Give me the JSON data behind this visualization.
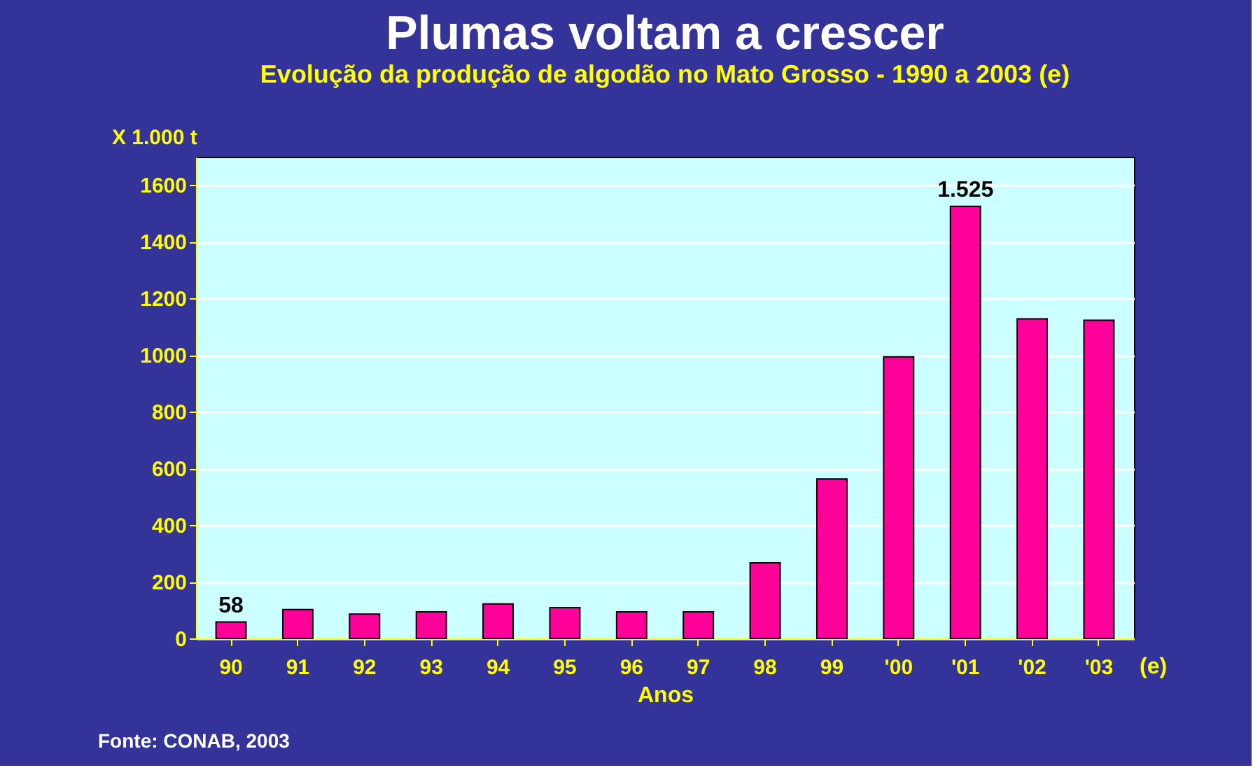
{
  "chart_data": {
    "type": "bar",
    "title": "Plumas voltam a crescer",
    "subtitle": "Evolução da produção de algodão no Mato Grosso -  1990 a 2003 (e)",
    "xlabel": "Anos",
    "ylabel": "X 1.000 t",
    "categories": [
      "90",
      "91",
      "92",
      "93",
      "94",
      "95",
      "96",
      "97",
      "98",
      "99",
      "'00",
      "'01",
      "'02",
      "'03"
    ],
    "values": [
      58,
      102,
      86,
      94,
      122,
      109,
      94,
      94,
      267,
      563,
      994,
      1525,
      1128,
      1123
    ],
    "value_labels": [
      "58",
      null,
      null,
      null,
      null,
      null,
      null,
      null,
      null,
      null,
      null,
      "1.525",
      null,
      null
    ],
    "color": "#ff0099",
    "ylim": [
      0,
      1700
    ],
    "yticks": [
      0,
      200,
      400,
      600,
      800,
      1000,
      1200,
      1400,
      1600
    ],
    "grid": "y",
    "annotations": [
      "(e)",
      "Fonte: CONAB, 2003"
    ]
  }
}
